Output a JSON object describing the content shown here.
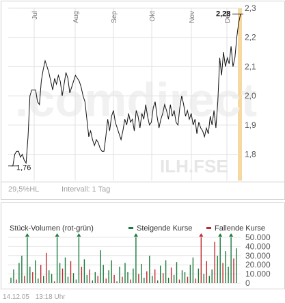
{
  "price_chart": {
    "watermark": ".comdirect",
    "symbol_watermark": "ILH.FSE",
    "stats": {
      "change": "29,5%HL",
      "interval": "Intervall: 1 Tag"
    },
    "annotations": {
      "low": "1,76",
      "high": "2,28"
    },
    "accent_color": "#f5d9a0"
  },
  "volume_chart": {
    "title": "Stück-Volumen (rot-grün)",
    "legend": [
      {
        "label": "Steigende Kurse",
        "color": "#1a7a3a"
      },
      {
        "label": "Fallende Kurse",
        "color": "#c0282d"
      }
    ]
  },
  "footer": {
    "date": "14.12.05",
    "time": "13:18 Uhr"
  },
  "chart_data": [
    {
      "type": "line",
      "x_ticks": [
        "Jul",
        "Aug",
        "Sep",
        "Okt",
        "Nov",
        "Dez"
      ],
      "y_ticks": [
        "1,8",
        "1,9",
        "2,0",
        "2,1",
        "2,2",
        "2,3"
      ],
      "ylim": [
        1.71,
        2.3
      ],
      "grid": true,
      "values": [
        1.76,
        1.76,
        1.8,
        1.81,
        1.81,
        1.79,
        1.8,
        1.78,
        1.77,
        1.86,
        2.0,
        2.02,
        2.02,
        2.02,
        1.98,
        1.97,
        2.05,
        2.09,
        2.12,
        2.1,
        2.08,
        2.05,
        2.02,
        2.06,
        2.04,
        2.07,
        2.05,
        2.0,
        2.04,
        2.08,
        2.06,
        2.01,
        2.03,
        2.05,
        2.07,
        2.06,
        2.05,
        2.03,
        2.0,
        1.98,
        1.92,
        1.86,
        1.88,
        1.85,
        1.83,
        1.85,
        1.84,
        1.82,
        1.81,
        1.81,
        1.86,
        1.92,
        1.88,
        1.93,
        1.95,
        1.91,
        1.89,
        1.87,
        1.85,
        1.88,
        1.92,
        1.9,
        1.94,
        1.91,
        1.92,
        1.88,
        1.95,
        1.93,
        1.89,
        1.94,
        1.92,
        1.97,
        1.93,
        1.9,
        1.91,
        1.96,
        1.98,
        1.93,
        1.89,
        1.92,
        1.94,
        1.97,
        1.95,
        1.92,
        1.97,
        1.93,
        1.95,
        1.91,
        1.9,
        1.96,
        2.0,
        1.97,
        1.93,
        1.95,
        1.92,
        1.94,
        1.9,
        1.92,
        1.87,
        1.91,
        1.89,
        1.88,
        1.86,
        1.89,
        1.87,
        1.93,
        1.9,
        1.95,
        1.89,
        1.98,
        2.13,
        2.07,
        2.15,
        2.1,
        2.13,
        2.11,
        2.17,
        2.1,
        2.13,
        2.2,
        2.25,
        2.28
      ]
    },
    {
      "type": "bar",
      "y_ticks": [
        "0",
        "10.000",
        "20.000",
        "30.000",
        "40.000",
        "50.000"
      ],
      "ylim": [
        0,
        50000
      ],
      "bars": [
        {
          "v": 6000,
          "d": "up"
        },
        {
          "v": 15000,
          "d": "up"
        },
        {
          "v": 4000,
          "d": "down"
        },
        {
          "v": 22000,
          "d": "up"
        },
        {
          "v": 30000,
          "d": "up"
        },
        {
          "v": 8000,
          "d": "down"
        },
        {
          "v": 60000,
          "d": "up"
        },
        {
          "v": 18000,
          "d": "up"
        },
        {
          "v": 12000,
          "d": "down"
        },
        {
          "v": 25000,
          "d": "up"
        },
        {
          "v": 5000,
          "d": "up"
        },
        {
          "v": 20000,
          "d": "down"
        },
        {
          "v": 8000,
          "d": "up"
        },
        {
          "v": 33000,
          "d": "down"
        },
        {
          "v": 14000,
          "d": "up"
        },
        {
          "v": 10000,
          "d": "up"
        },
        {
          "v": 2000,
          "d": "down"
        },
        {
          "v": 60000,
          "d": "up"
        },
        {
          "v": 22000,
          "d": "up"
        },
        {
          "v": 16000,
          "d": "down"
        },
        {
          "v": 28000,
          "d": "up"
        },
        {
          "v": 7000,
          "d": "up"
        },
        {
          "v": 24000,
          "d": "down"
        },
        {
          "v": 11000,
          "d": "up"
        },
        {
          "v": 4000,
          "d": "up"
        },
        {
          "v": 60000,
          "d": "up"
        },
        {
          "v": 18000,
          "d": "down"
        },
        {
          "v": 26000,
          "d": "up"
        },
        {
          "v": 9000,
          "d": "up"
        },
        {
          "v": 15000,
          "d": "down"
        },
        {
          "v": 3000,
          "d": "up"
        },
        {
          "v": 12000,
          "d": "up"
        },
        {
          "v": 8000,
          "d": "down"
        },
        {
          "v": 36000,
          "d": "up"
        },
        {
          "v": 20000,
          "d": "up"
        },
        {
          "v": 5000,
          "d": "down"
        },
        {
          "v": 14000,
          "d": "up"
        },
        {
          "v": 25000,
          "d": "up"
        },
        {
          "v": 9000,
          "d": "down"
        },
        {
          "v": 2000,
          "d": "up"
        },
        {
          "v": 18000,
          "d": "up"
        },
        {
          "v": 7000,
          "d": "down"
        },
        {
          "v": 22000,
          "d": "up"
        },
        {
          "v": 12000,
          "d": "up"
        },
        {
          "v": 4000,
          "d": "down"
        },
        {
          "v": 16000,
          "d": "up"
        },
        {
          "v": 60000,
          "d": "up"
        },
        {
          "v": 10000,
          "d": "down"
        },
        {
          "v": 21000,
          "d": "up"
        },
        {
          "v": 6000,
          "d": "up"
        },
        {
          "v": 13000,
          "d": "down"
        },
        {
          "v": 30000,
          "d": "up"
        },
        {
          "v": 8000,
          "d": "up"
        },
        {
          "v": 15000,
          "d": "down"
        },
        {
          "v": 3000,
          "d": "up"
        },
        {
          "v": 19000,
          "d": "up"
        },
        {
          "v": 11000,
          "d": "down"
        },
        {
          "v": 25000,
          "d": "up"
        },
        {
          "v": 6000,
          "d": "up"
        },
        {
          "v": 17000,
          "d": "down"
        },
        {
          "v": 9000,
          "d": "up"
        },
        {
          "v": 23000,
          "d": "up"
        },
        {
          "v": 4000,
          "d": "down"
        },
        {
          "v": 14000,
          "d": "up"
        },
        {
          "v": 12000,
          "d": "up"
        },
        {
          "v": 7000,
          "d": "down"
        },
        {
          "v": 20000,
          "d": "up"
        },
        {
          "v": 28000,
          "d": "up"
        },
        {
          "v": 5000,
          "d": "down"
        },
        {
          "v": 16000,
          "d": "up"
        },
        {
          "v": 60000,
          "d": "down"
        },
        {
          "v": 10000,
          "d": "up"
        },
        {
          "v": 24000,
          "d": "down"
        },
        {
          "v": 8000,
          "d": "up"
        },
        {
          "v": 15000,
          "d": "up"
        },
        {
          "v": 45000,
          "d": "down"
        },
        {
          "v": 30000,
          "d": "up"
        },
        {
          "v": 60000,
          "d": "up"
        },
        {
          "v": 22000,
          "d": "down"
        },
        {
          "v": 35000,
          "d": "up"
        },
        {
          "v": 18000,
          "d": "up"
        },
        {
          "v": 60000,
          "d": "up"
        },
        {
          "v": 27000,
          "d": "down"
        },
        {
          "v": 38000,
          "d": "up"
        }
      ]
    }
  ]
}
